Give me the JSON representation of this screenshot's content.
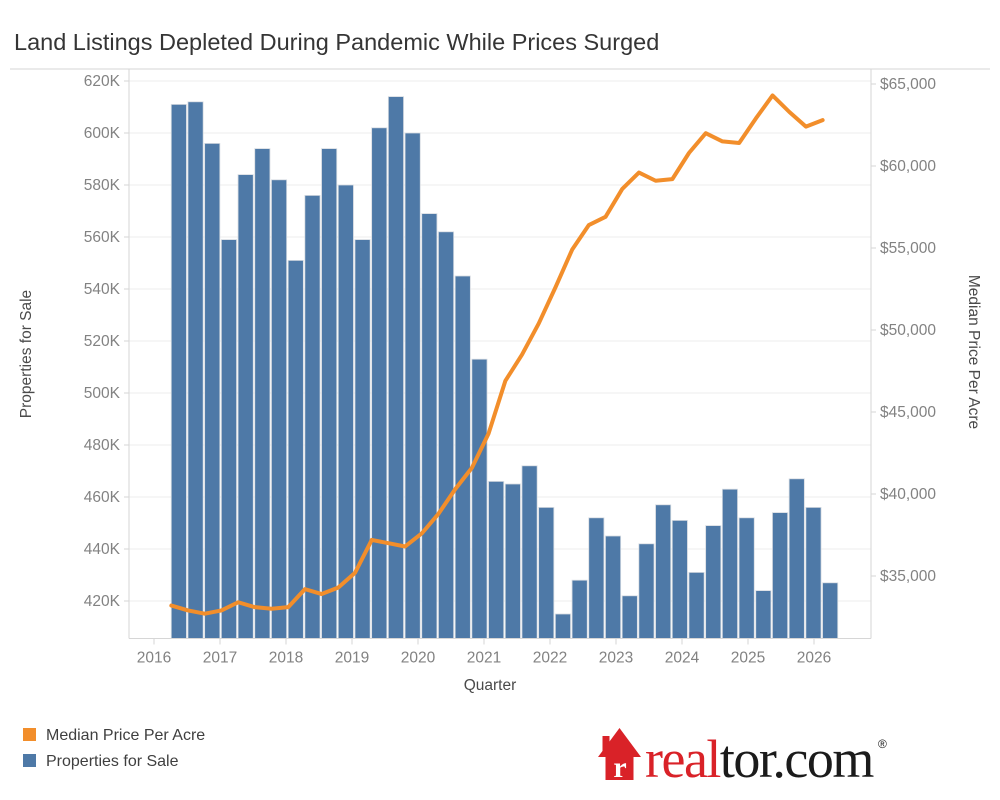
{
  "title": "Land Listings Depleted During Pandemic While Prices Surged",
  "chart_data": {
    "type": "bar+line-dual-axis",
    "x": [
      "2016 Q2",
      "2016 Q3",
      "2016 Q4",
      "2017 Q1",
      "2017 Q2",
      "2017 Q3",
      "2017 Q4",
      "2018 Q1",
      "2018 Q2",
      "2018 Q3",
      "2018 Q4",
      "2019 Q1",
      "2019 Q2",
      "2019 Q3",
      "2019 Q4",
      "2020 Q1",
      "2020 Q2",
      "2020 Q3",
      "2020 Q4",
      "2021 Q1",
      "2021 Q2",
      "2021 Q3",
      "2021 Q4",
      "2022 Q1",
      "2022 Q2",
      "2022 Q3",
      "2022 Q4",
      "2023 Q1",
      "2023 Q2",
      "2023 Q3",
      "2023 Q4",
      "2024 Q1",
      "2024 Q2",
      "2024 Q3",
      "2024 Q4",
      "2025 Q1",
      "2025 Q2",
      "2025 Q3",
      "2025 Q4",
      "2026 Q1"
    ],
    "series": [
      {
        "name": "Properties for Sale",
        "type": "bar",
        "axis": "left",
        "color": "#4E79A7",
        "values_thousands": [
          611,
          612,
          596,
          559,
          584,
          594,
          582,
          551,
          576,
          594,
          580,
          559,
          602,
          614,
          600,
          569,
          562,
          545,
          513,
          466,
          465,
          472,
          456,
          415,
          428,
          452,
          445,
          422,
          442,
          457,
          451,
          431,
          449,
          463,
          452,
          424,
          454,
          467,
          456,
          427
        ]
      },
      {
        "name": "Median Price Per Acre",
        "type": "line",
        "axis": "right",
        "color": "#F28E2B",
        "values_usd": [
          33200,
          32900,
          32700,
          32900,
          33400,
          33100,
          33000,
          33100,
          34200,
          33900,
          34300,
          35200,
          37200,
          37000,
          36800,
          37600,
          38800,
          40300,
          41600,
          43700,
          46900,
          48500,
          50400,
          52600,
          54900,
          56400,
          56900,
          58600,
          59600,
          59100,
          59200,
          60800,
          62000,
          61500,
          61400,
          62900,
          64300,
          63300,
          62400,
          62800
        ]
      }
    ],
    "left_axis": {
      "title": "Properties for Sale",
      "tick_values": [
        620,
        600,
        580,
        560,
        540,
        520,
        500,
        480,
        460,
        440,
        420
      ],
      "tick_labels": [
        "620K",
        "600K",
        "580K",
        "560K",
        "540K",
        "520K",
        "500K",
        "480K",
        "460K",
        "440K",
        "420K"
      ],
      "units": "thousands",
      "approx_min": 406,
      "approx_max": 626
    },
    "right_axis": {
      "title": "Median Price Per Acre",
      "tick_values": [
        65000,
        60000,
        55000,
        50000,
        45000,
        40000,
        35000
      ],
      "tick_labels": [
        "$65,000",
        "$60,000",
        "$55,000",
        "$50,000",
        "$45,000",
        "$40,000",
        "$35,000"
      ],
      "units": "USD"
    },
    "x_axis": {
      "title": "Quarter",
      "tick_labels": [
        "2016",
        "2017",
        "2018",
        "2019",
        "2020",
        "2021",
        "2022",
        "2023",
        "2024",
        "2025",
        "2026"
      ]
    },
    "grid": "horizontal-only",
    "legend_position": "bottom-left"
  },
  "legend": {
    "items": [
      {
        "label": "Median Price Per Acre",
        "color": "#F28E2B"
      },
      {
        "label": "Properties for Sale",
        "color": "#4E79A7"
      }
    ]
  },
  "logo": {
    "brand_red": "#D92228",
    "house_letter": "r",
    "text_red_part": "real",
    "text_black_part": "tor.com",
    "registered_mark": "®"
  },
  "colors": {
    "bar": "#4E79A7",
    "bar_separator": "#d7dce2",
    "line": "#F28E2B",
    "grid": "#ececec",
    "axis_line": "#d6d6d6",
    "tick_text": "#828282",
    "axis_title_text": "#4a4a4a",
    "title_text": "#353535",
    "legend_text": "#3f3f3f",
    "logo_black": "#1b1b1b"
  }
}
